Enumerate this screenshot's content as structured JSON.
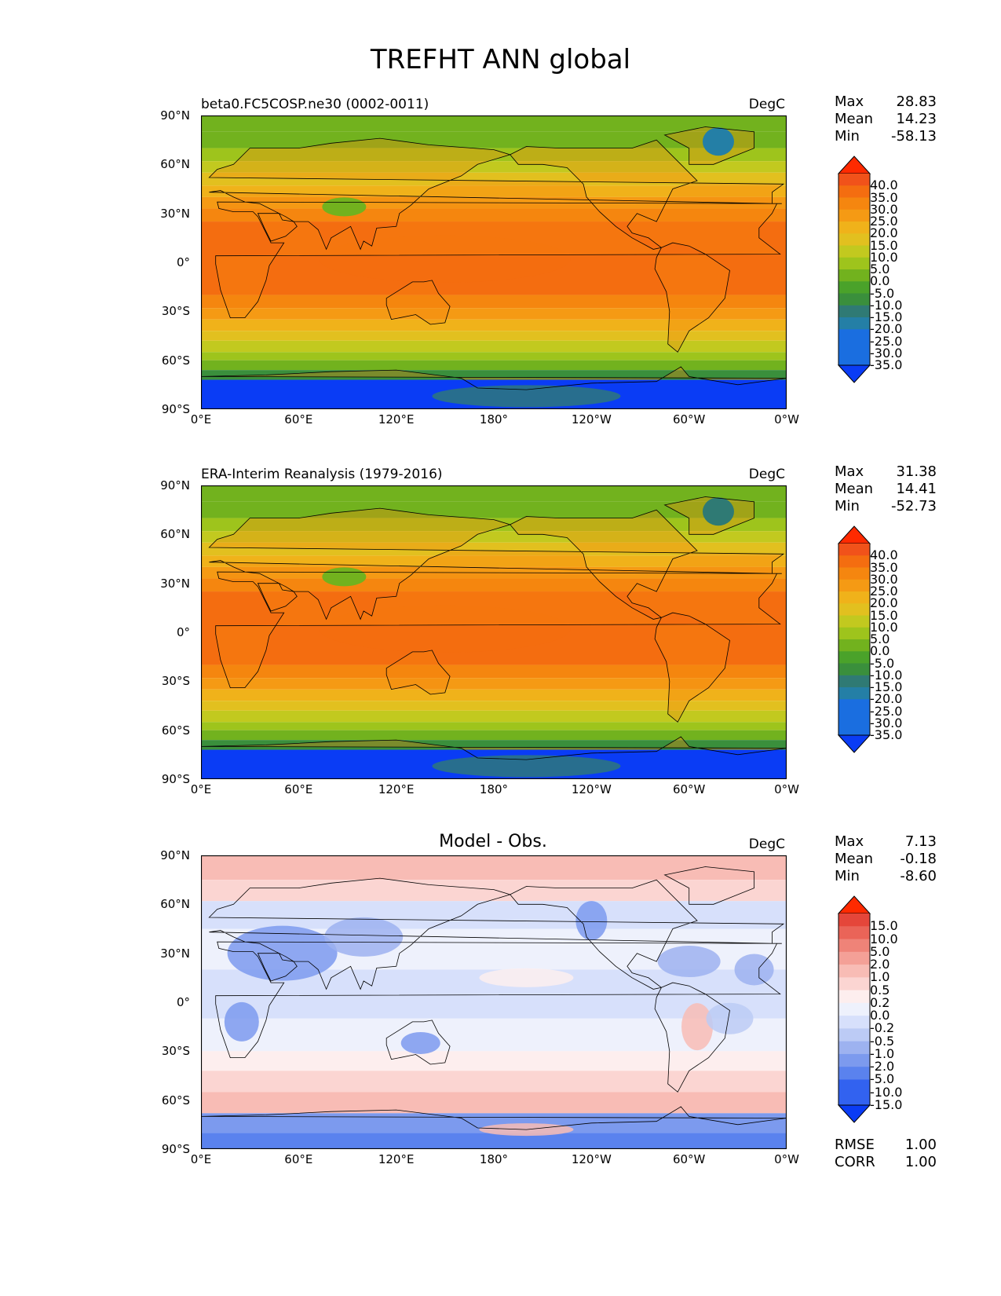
{
  "title": "TREFHT ANN global",
  "lat_labels": [
    "90°N",
    "60°N",
    "30°N",
    "0°",
    "30°S",
    "60°S",
    "90°S"
  ],
  "lon_labels": [
    "0°E",
    "60°E",
    "120°E",
    "180°",
    "120°W",
    "60°W",
    "0°W"
  ],
  "colors": {
    "abs_palette": [
      "#0a3cf5",
      "#1a6ee0",
      "#247fa6",
      "#2f7a74",
      "#3a8f3c",
      "#4aa22a",
      "#72b21e",
      "#9ec41c",
      "#c2c91f",
      "#e2c01f",
      "#f0b21a",
      "#f59a14",
      "#f5860f",
      "#f46d10",
      "#f1521a",
      "#ff2a00"
    ],
    "diff_palette": [
      "#0a3cf5",
      "#3262f0",
      "#5a82ee",
      "#7c9aee",
      "#9db2f0",
      "#bccbf5",
      "#d7e0fb",
      "#eef1fc",
      "#fdeeee",
      "#fbd5d2",
      "#f8bcb5",
      "#f4a097",
      "#ef8378",
      "#ea6458",
      "#e5463a",
      "#ff2a00"
    ],
    "land_outline": "#000000"
  },
  "panels": [
    {
      "title_left": "beta0.FC5COSP.ne30 (0002-0011)",
      "title_center": "",
      "units": "DegC",
      "stats": [
        {
          "label": "Max",
          "value": "28.83"
        },
        {
          "label": "Mean",
          "value": "14.23"
        },
        {
          "label": "Min",
          "value": "-58.13"
        }
      ],
      "colorbar_labels": [
        "40.0",
        "35.0",
        "30.0",
        "25.0",
        "20.0",
        "15.0",
        "10.0",
        "5.0",
        "0.0",
        "-5.0",
        "-10.0",
        "-15.0",
        "-20.0",
        "-25.0",
        "-30.0",
        "-35.0"
      ],
      "kind": "abs"
    },
    {
      "title_left": "ERA-Interim Reanalysis (1979-2016)",
      "title_center": "",
      "units": "DegC",
      "stats": [
        {
          "label": "Max",
          "value": "31.38"
        },
        {
          "label": "Mean",
          "value": "14.41"
        },
        {
          "label": "Min",
          "value": "-52.73"
        }
      ],
      "colorbar_labels": [
        "40.0",
        "35.0",
        "30.0",
        "25.0",
        "20.0",
        "15.0",
        "10.0",
        "5.0",
        "0.0",
        "-5.0",
        "-10.0",
        "-15.0",
        "-20.0",
        "-25.0",
        "-30.0",
        "-35.0"
      ],
      "kind": "abs"
    },
    {
      "title_left": "",
      "title_center": "Model - Obs.",
      "units": "DegC",
      "stats": [
        {
          "label": "Max",
          "value": "7.13"
        },
        {
          "label": "Mean",
          "value": "-0.18"
        },
        {
          "label": "Min",
          "value": "-8.60"
        }
      ],
      "colorbar_labels": [
        "15.0",
        "10.0",
        "5.0",
        "2.0",
        "1.0",
        "0.5",
        "0.2",
        "0.0",
        "-0.2",
        "-0.5",
        "-1.0",
        "-2.0",
        "-5.0",
        "-10.0",
        "-15.0"
      ],
      "kind": "diff"
    }
  ],
  "metrics": [
    {
      "label": "RMSE",
      "value": "1.00"
    },
    {
      "label": "CORR",
      "value": "1.00"
    }
  ]
}
